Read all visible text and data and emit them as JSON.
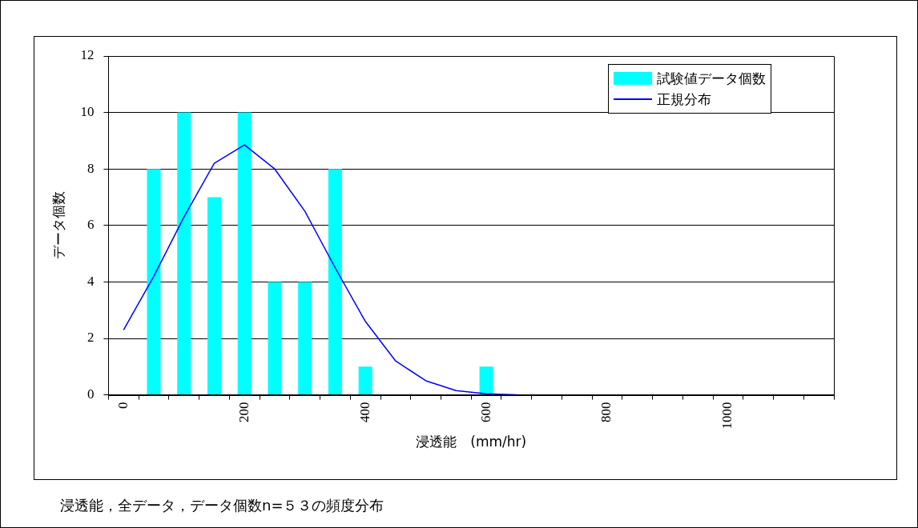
{
  "chart_data": {
    "type": "bar",
    "categories": [
      "0",
      null,
      null,
      null,
      "200",
      null,
      null,
      null,
      "400",
      null,
      null,
      null,
      "600",
      null,
      null,
      null,
      "800",
      null,
      null,
      null,
      "1000",
      null,
      null,
      null
    ],
    "series": [
      {
        "name": "試験値データ個数",
        "color": "#00ffff",
        "values": [
          null,
          8,
          10,
          7,
          10,
          4,
          4,
          8,
          1,
          null,
          null,
          null,
          1,
          null,
          null,
          null,
          null,
          null,
          null,
          null,
          null,
          null,
          null,
          null
        ]
      },
      {
        "name": "正規分布",
        "type": "line",
        "color": "#0000ff",
        "values": [
          2.3,
          4.2,
          6.3,
          8.2,
          8.85,
          8.0,
          6.5,
          4.5,
          2.6,
          1.2,
          0.5,
          0.15,
          0.04,
          0,
          null,
          null,
          null,
          null,
          null,
          null,
          null,
          null,
          null,
          null
        ]
      }
    ],
    "xlabel": "浸透能　(mm/hr)",
    "ylabel": "データ個数",
    "ylim": [
      0,
      12
    ],
    "yticks": [
      0,
      2,
      4,
      6,
      8,
      10,
      12
    ],
    "grid": "y",
    "legend": "top right",
    "marker": "none",
    "annotations": [
      "浸透能，全データ，データ個数n=５３の頻度分布"
    ]
  }
}
